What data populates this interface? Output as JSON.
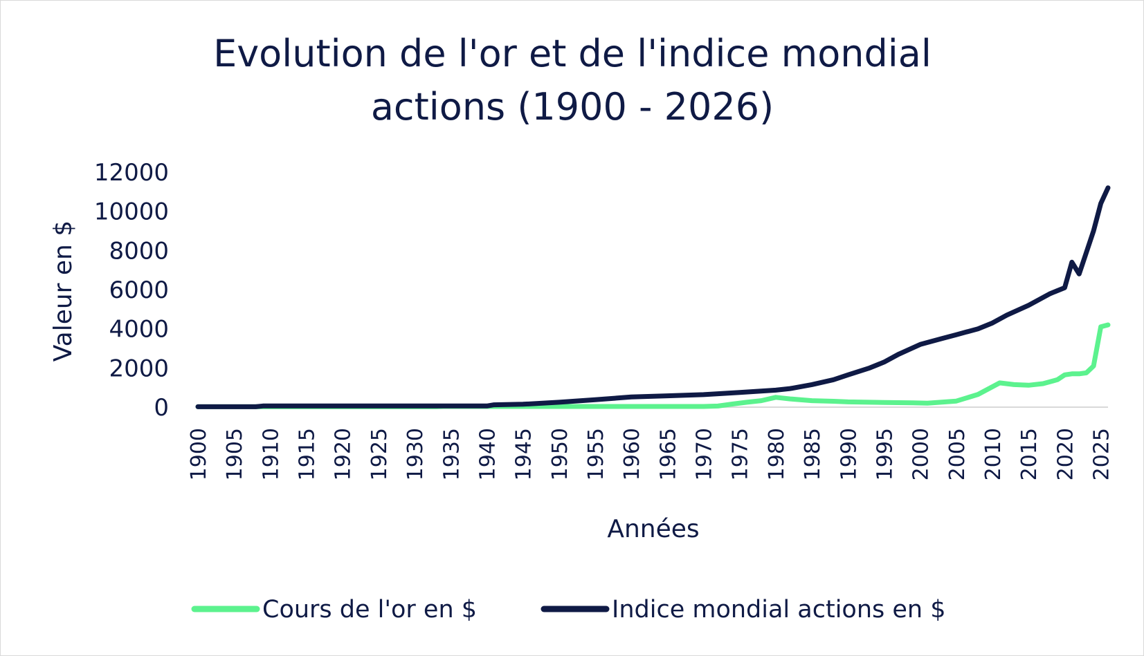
{
  "chart_data": {
    "type": "line",
    "title_lines": [
      "Evolution de l'or et de l'indice mondial",
      "actions (1900 - 2026)"
    ],
    "xlabel": "Années",
    "ylabel": "Valeur en $",
    "ylim": [
      0,
      12000
    ],
    "yticks": [
      0,
      2000,
      4000,
      6000,
      8000,
      10000,
      12000
    ],
    "xlim": [
      1900,
      2026
    ],
    "xticks": [
      1900,
      1905,
      1910,
      1915,
      1920,
      1925,
      1930,
      1935,
      1940,
      1945,
      1950,
      1955,
      1960,
      1965,
      1970,
      1975,
      1980,
      1985,
      1990,
      1995,
      2000,
      2005,
      2010,
      2015,
      2020,
      2025
    ],
    "grid": false,
    "legend_position": "bottom",
    "series": [
      {
        "name": "Cours de l'or en $",
        "color": "#5cf28e",
        "x": [
          1900,
          1933,
          1934,
          1970,
          1972,
          1974,
          1976,
          1978,
          1980,
          1982,
          1985,
          1988,
          1990,
          1995,
          1999,
          2001,
          2005,
          2008,
          2011,
          2013,
          2015,
          2017,
          2019,
          2020,
          2021,
          2022,
          2023,
          2024,
          2025,
          2026
        ],
        "y": [
          21,
          21,
          35,
          36,
          58,
          160,
          250,
          330,
          500,
          420,
          330,
          300,
          270,
          240,
          220,
          200,
          310,
          650,
          1240,
          1150,
          1120,
          1200,
          1400,
          1650,
          1700,
          1700,
          1750,
          2100,
          4100,
          4200
        ]
      },
      {
        "name": "Indice mondial actions en $",
        "color": "#0f1a45",
        "x": [
          1900,
          1908,
          1909,
          1940,
          1941,
          1945,
          1950,
          1955,
          1960,
          1965,
          1970,
          1975,
          1980,
          1982,
          1985,
          1988,
          1990,
          1993,
          1995,
          1997,
          2000,
          2003,
          2005,
          2008,
          2010,
          2012,
          2015,
          2018,
          2020,
          2021,
          2022,
          2023,
          2024,
          2025,
          2026
        ],
        "y": [
          20,
          20,
          60,
          60,
          120,
          150,
          250,
          380,
          520,
          580,
          640,
          750,
          870,
          950,
          1150,
          1400,
          1650,
          2000,
          2300,
          2700,
          3200,
          3500,
          3700,
          4000,
          4300,
          4700,
          5200,
          5800,
          6100,
          7400,
          6800,
          7900,
          9000,
          10400,
          11200
        ]
      }
    ]
  }
}
